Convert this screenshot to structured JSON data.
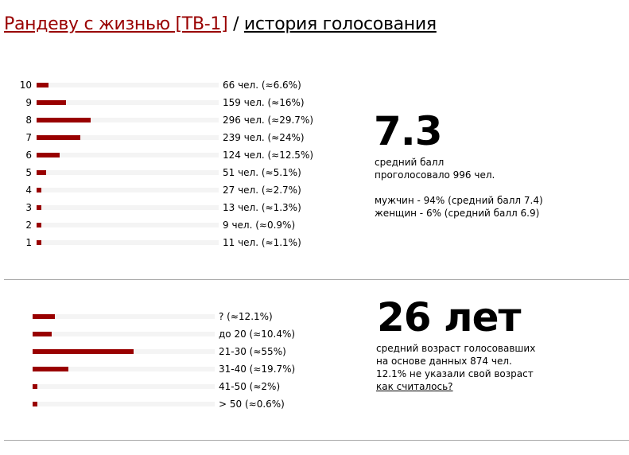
{
  "header": {
    "film_link": "Рандеву с жизнью [TB-1]",
    "separator": "/",
    "subtitle": "история голосования"
  },
  "colors": {
    "bar": "#990000",
    "track": "#f4f4f4"
  },
  "ratings": [
    {
      "score": "10",
      "text": "66 чел. (≈6.6%)",
      "percent": 6.6
    },
    {
      "score": "9",
      "text": "159 чел. (≈16%)",
      "percent": 16
    },
    {
      "score": "8",
      "text": "296 чел. (≈29.7%)",
      "percent": 29.7
    },
    {
      "score": "7",
      "text": "239 чел. (≈24%)",
      "percent": 24
    },
    {
      "score": "6",
      "text": "124 чел. (≈12.5%)",
      "percent": 12.5
    },
    {
      "score": "5",
      "text": "51 чел. (≈5.1%)",
      "percent": 5.1
    },
    {
      "score": "4",
      "text": "27 чел. (≈2.7%)",
      "percent": 2.7
    },
    {
      "score": "3",
      "text": "13 чел. (≈1.3%)",
      "percent": 1.3
    },
    {
      "score": "2",
      "text": "9 чел. (≈0.9%)",
      "percent": 0.9
    },
    {
      "score": "1",
      "text": "11 чел. (≈1.1%)",
      "percent": 1.1
    }
  ],
  "rating_summary": {
    "average": "7.3",
    "avg_label": "средний балл",
    "voted": "проголосовало 996 чел.",
    "men": "мужчин - 94% (средний балл 7.4)",
    "women": "женщин - 6% (средний балл 6.9)"
  },
  "ages": [
    {
      "text": "? (≈12.1%)",
      "percent": 12.1
    },
    {
      "text": "до 20 (≈10.4%)",
      "percent": 10.4
    },
    {
      "text": "21-30 (≈55%)",
      "percent": 55
    },
    {
      "text": "31-40 (≈19.7%)",
      "percent": 19.7
    },
    {
      "text": "41-50 (≈2%)",
      "percent": 2
    },
    {
      "text": "> 50 (≈0.6%)",
      "percent": 0.6
    }
  ],
  "age_summary": {
    "average": "26 лет",
    "line1": "средний возраст голосовавших",
    "line2": "на основе данных 874 чел.",
    "line3": "12.1% не указали свой возраст",
    "link": "как считалось?"
  }
}
